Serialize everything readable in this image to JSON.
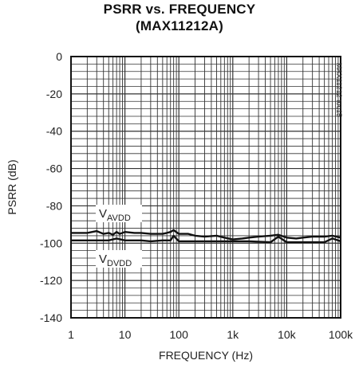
{
  "chart_data": {
    "type": "line",
    "title": "PSRR vs. FREQUENCY",
    "subtitle": "(MAX11212A)",
    "xlabel": "FREQUENCY (Hz)",
    "ylabel": "PSRR (dB)",
    "x_scale": "log",
    "xlim": [
      1,
      100000
    ],
    "ylim": [
      -140,
      0
    ],
    "grid": true,
    "x_ticks": [
      1,
      10,
      100,
      1000,
      10000,
      100000
    ],
    "x_tick_labels": [
      "1",
      "10",
      "100",
      "1k",
      "10k",
      "100k"
    ],
    "y_ticks": [
      0,
      -20,
      -40,
      -60,
      -80,
      -100,
      -120,
      -140
    ],
    "y_tick_labels": [
      "0",
      "-20",
      "-40",
      "-60",
      "-80",
      "-100",
      "-120",
      "-140"
    ],
    "annotation": "MAX11212 toc15",
    "series": [
      {
        "name": "VAVDD",
        "label_main": "V",
        "label_sub": "AVDD",
        "x": [
          1,
          1.5,
          2,
          3,
          4,
          5,
          6,
          7,
          8,
          9,
          10,
          15,
          20,
          30,
          40,
          50,
          60,
          70,
          80,
          100,
          150,
          200,
          300,
          500,
          700,
          1000,
          1500,
          2000,
          3000,
          5000,
          7000,
          10000,
          15000,
          20000,
          30000,
          50000,
          70000,
          100000
        ],
        "y": [
          -94.5,
          -94.5,
          -94.5,
          -93.5,
          -95,
          -94.5,
          -95.5,
          -94,
          -95,
          -94.5,
          -94,
          -94.5,
          -94.5,
          -95,
          -95,
          -95,
          -94.5,
          -94,
          -93,
          -95,
          -95,
          -96,
          -96.5,
          -96,
          -97,
          -98,
          -97.5,
          -97,
          -96.5,
          -96,
          -95.5,
          -97,
          -97.5,
          -97,
          -96.5,
          -96.5,
          -96,
          -97
        ]
      },
      {
        "name": "VDVDD",
        "label_main": "V",
        "label_sub": "DVDD",
        "x": [
          1,
          2,
          3,
          5,
          7,
          10,
          20,
          30,
          50,
          70,
          80,
          100,
          200,
          500,
          1000,
          2000,
          5000,
          7000,
          10000,
          20000,
          50000,
          70000,
          100000
        ],
        "y": [
          -98.5,
          -98.5,
          -98.5,
          -98.5,
          -97.5,
          -98.5,
          -98.5,
          -99,
          -98.5,
          -98.5,
          -96,
          -99,
          -99,
          -99,
          -99,
          -99,
          -99.5,
          -96.5,
          -99.5,
          -99.5,
          -99.5,
          -97.5,
          -99
        ]
      }
    ]
  }
}
